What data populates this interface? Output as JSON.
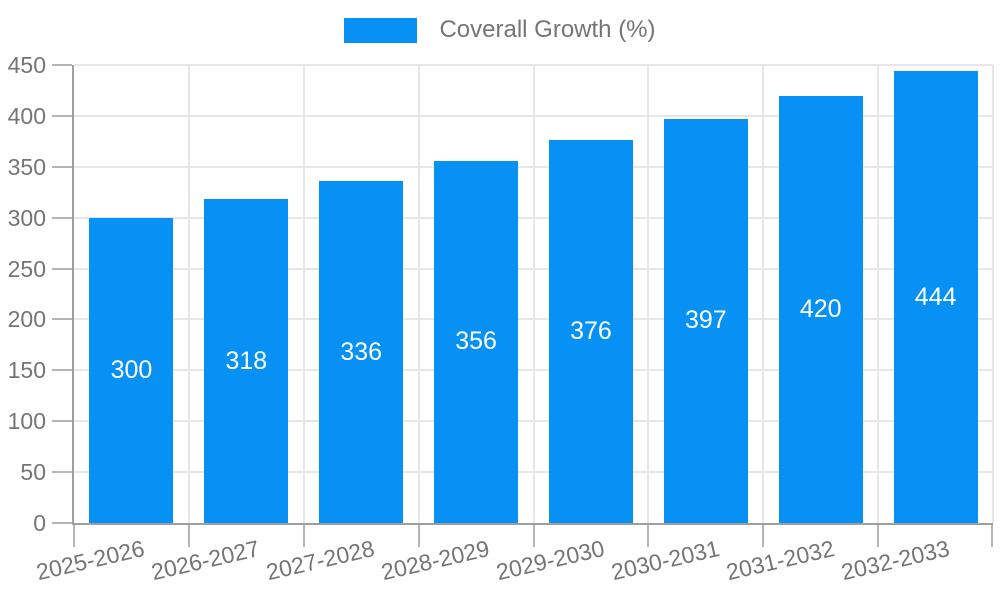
{
  "chart_data": {
    "type": "bar",
    "title": "",
    "legend": {
      "label": "Coverall Growth (%)",
      "position": "top"
    },
    "categories": [
      "2025-2026",
      "2026-2027",
      "2027-2028",
      "2028-2029",
      "2029-2030",
      "2030-2031",
      "2031-2032",
      "2032-2033"
    ],
    "series": [
      {
        "name": "Coverall Growth (%)",
        "values": [
          300,
          318,
          336,
          356,
          376,
          397,
          420,
          444
        ]
      }
    ],
    "bar_value_labels_visible": true,
    "xlabel": "",
    "ylabel": "",
    "ylim": [
      0,
      450
    ],
    "yticks": [
      0,
      50,
      100,
      150,
      200,
      250,
      300,
      350,
      400,
      450
    ],
    "grid": true,
    "x_label_rotation_deg": -13,
    "colors": {
      "bar": "#0791f5",
      "bar_label_text": "#ffffff",
      "axis_text": "#757575",
      "axis_line": "#9e9e9e",
      "tick": "#b5b5b5",
      "gridline": "#e7e7e7",
      "background": "#ffffff"
    }
  }
}
